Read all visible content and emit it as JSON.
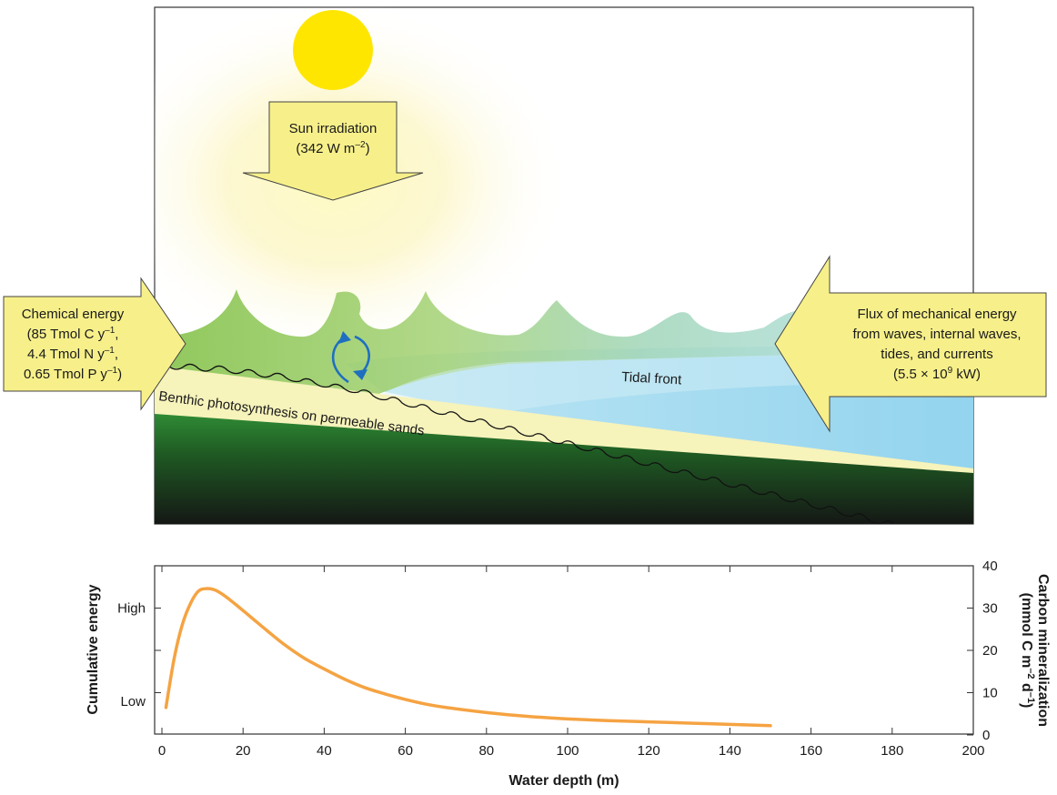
{
  "diagram": {
    "sun_box": {
      "line1": "Sun irradiation",
      "line2_prefix": "(342 W m",
      "line2_sup": "–2",
      "line2_suffix": ")"
    },
    "chemical_box": {
      "title": "Chemical energy",
      "line1_prefix": "(85 Tmol C y",
      "line1_sup": "–1",
      "line1_suffix": ",",
      "line2_prefix": "4.4 Tmol N y",
      "line2_sup": "–1",
      "line2_suffix": ",",
      "line3_prefix": "0.65 Tmol P y",
      "line3_sup": "–1",
      "line3_suffix": ")"
    },
    "mechanical_box": {
      "line1": "Flux of mechanical energy",
      "line2": "from waves, internal waves,",
      "line3": "tides, and currents",
      "line4_prefix": "(5.5 × 10",
      "line4_sup": "9",
      "line4_suffix": " kW)"
    },
    "tidal_front_label": "Tidal front",
    "benthic_label": "Benthic photosynthesis on permeable sands",
    "colors": {
      "box_fill": "#f7f08a",
      "sun": "#ffe600",
      "water": "#9fdaf0",
      "wave_green": "#8fc65a",
      "sand": "#f5f2b8",
      "sediment_green": "#2e7d32",
      "sediment_dark": "#1a1a1a",
      "curve": "#f5a342",
      "circulation_arrow": "#1f6fc0"
    }
  },
  "chart_data": {
    "type": "line",
    "xlabel": "Water depth (m)",
    "ylabel_left": "Cumulative energy",
    "ylabel_right_line1": "Carbon mineralization",
    "ylabel_right_line2_prefix": "(mmol C m",
    "ylabel_right_line2_sup1": "–2",
    "ylabel_right_line2_mid": " d",
    "ylabel_right_line2_sup2": "–1",
    "ylabel_right_line2_suffix": ")",
    "xlim": [
      0,
      200
    ],
    "x_ticks": [
      "0",
      "20",
      "40",
      "60",
      "80",
      "100",
      "120",
      "140",
      "160",
      "180",
      "200"
    ],
    "x_tick_values": [
      0,
      20,
      40,
      60,
      80,
      100,
      120,
      140,
      160,
      180,
      200
    ],
    "ylim_right": [
      0,
      40
    ],
    "y_right_ticks": [
      "0",
      "10",
      "20",
      "30",
      "40"
    ],
    "y_right_tick_values": [
      0,
      10,
      20,
      30,
      40
    ],
    "y_left_ticks": [
      "Low",
      "High"
    ],
    "y_left_tick_values": [
      8,
      30
    ],
    "series": [
      {
        "x": [
          1,
          3,
          5,
          7,
          9,
          11,
          13,
          15,
          18,
          22,
          26,
          30,
          35,
          40,
          45,
          50,
          55,
          60,
          65,
          70,
          80,
          90,
          100,
          110,
          120,
          130,
          140,
          150
        ],
        "y": [
          6.5,
          18,
          26,
          31,
          34,
          34.6,
          34.3,
          33.2,
          31,
          27.8,
          24.6,
          21.5,
          18.2,
          15.6,
          13.2,
          11.2,
          9.7,
          8.4,
          7.3,
          6.5,
          5.3,
          4.4,
          3.8,
          3.4,
          3.1,
          2.8,
          2.5,
          2.2
        ]
      }
    ]
  }
}
